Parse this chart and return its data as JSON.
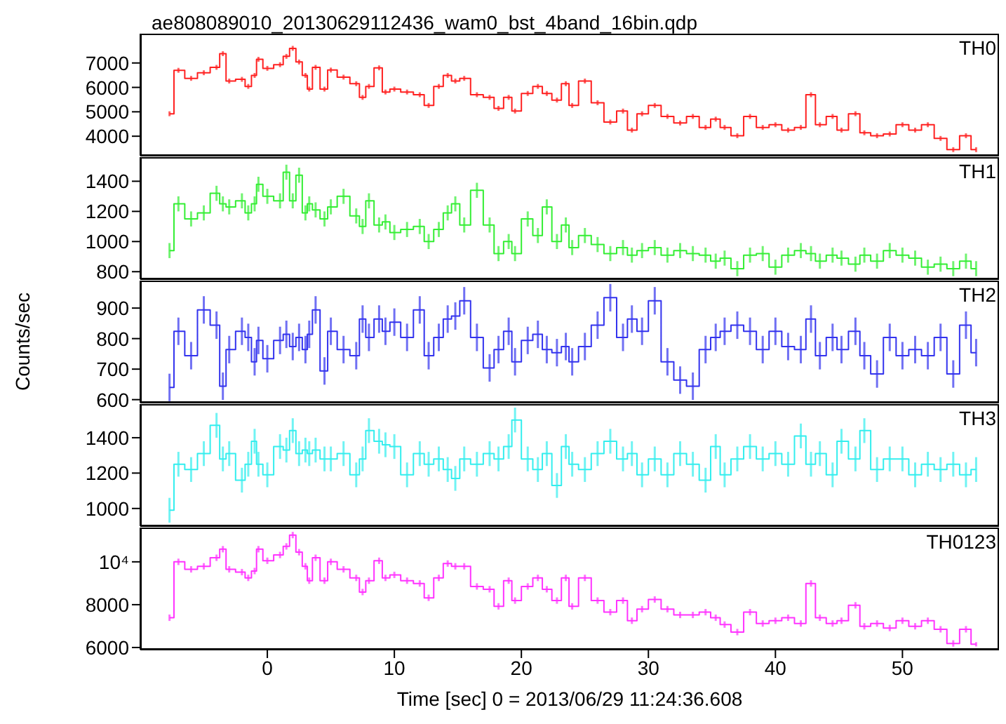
{
  "chart_data": [
    {
      "type": "step",
      "title": "ae808089010_20130629112436_wam0_bst_4band_16bin.qdp",
      "annotations": [
        "TH0"
      ],
      "tick_labels": "y",
      "xlim": [
        -10,
        57.6
      ],
      "xticks": [
        0,
        10,
        20,
        30,
        40,
        50
      ],
      "ylim": [
        3200,
        8200
      ],
      "yticks": [
        4000,
        5000,
        6000,
        7000
      ],
      "x": [
        -7.7,
        -7,
        -6,
        -5,
        -4,
        -3.5,
        -3,
        -2,
        -1.5,
        -1,
        -0.7,
        0,
        1,
        1.5,
        2,
        2.5,
        3,
        3.3,
        3.8,
        4.5,
        5,
        6,
        7,
        7.5,
        8,
        8.8,
        9.3,
        10,
        11,
        12,
        12.7,
        13.5,
        14.2,
        14.8,
        15.5,
        16.5,
        17.5,
        18.2,
        19,
        19.5,
        20.5,
        21.3,
        22,
        22.8,
        23.5,
        24,
        25,
        26,
        27,
        28,
        28.7,
        29.5,
        30.5,
        31.5,
        32.5,
        33.5,
        34.5,
        35.3,
        36,
        37,
        38,
        39,
        40,
        41,
        42,
        42.8,
        43.5,
        44.5,
        45.2,
        46.3,
        47,
        48,
        49,
        50,
        51,
        52,
        53,
        54,
        55,
        55.8
      ],
      "series": [
        {
          "color": "#ff2020",
          "values": [
            4920,
            6700,
            6370,
            6600,
            6820,
            7380,
            6260,
            6330,
            6040,
            6490,
            7150,
            6780,
            6930,
            7270,
            7600,
            7040,
            6490,
            5930,
            6820,
            5930,
            6710,
            6420,
            6150,
            5590,
            6040,
            6800,
            5810,
            5930,
            5810,
            5700,
            5260,
            6040,
            6490,
            6260,
            6370,
            5700,
            5590,
            5140,
            5590,
            5030,
            5750,
            6040,
            5750,
            5480,
            6150,
            5260,
            6260,
            5370,
            4580,
            5030,
            4250,
            4920,
            5260,
            4810,
            4540,
            4810,
            4360,
            4700,
            4360,
            4020,
            4810,
            4360,
            4470,
            4250,
            4360,
            5700,
            4470,
            4810,
            4250,
            4920,
            4140,
            4020,
            4090,
            4470,
            4250,
            4470,
            3910,
            3450,
            4020,
            3450
          ],
          "errors": [
            100,
            100,
            100,
            100,
            100,
            100,
            100,
            100,
            100,
            100,
            100,
            100,
            100,
            100,
            100,
            100,
            100,
            100,
            100,
            100,
            100,
            100,
            100,
            100,
            100,
            100,
            100,
            100,
            100,
            100,
            100,
            100,
            100,
            100,
            100,
            100,
            100,
            100,
            100,
            100,
            100,
            100,
            100,
            100,
            100,
            100,
            100,
            100,
            100,
            100,
            100,
            100,
            100,
            100,
            100,
            100,
            100,
            100,
            100,
            100,
            100,
            100,
            100,
            100,
            100,
            100,
            100,
            100,
            100,
            100,
            100,
            100,
            100,
            100,
            100,
            100,
            100,
            100,
            100,
            100
          ]
        }
      ]
    },
    {
      "type": "step",
      "annotations": [
        "TH1"
      ],
      "tick_labels": "y",
      "xlim": [
        -10,
        57.6
      ],
      "xticks": [
        0,
        10,
        20,
        30,
        40,
        50
      ],
      "ylim": [
        750,
        1560
      ],
      "yticks": [
        800,
        1000,
        1200,
        1400
      ],
      "x": [
        -7.7,
        -7,
        -6,
        -5,
        -4,
        -3.5,
        -3,
        -2,
        -1.5,
        -1,
        -0.7,
        0,
        1,
        1.5,
        2,
        2.5,
        3,
        3.3,
        3.8,
        4.5,
        5,
        6,
        7,
        7.5,
        8,
        8.8,
        9.3,
        10,
        11,
        12,
        12.7,
        13.5,
        14.2,
        14.8,
        15.5,
        16.5,
        17.5,
        18.2,
        19,
        19.5,
        20.5,
        21.3,
        22,
        22.8,
        23.5,
        24,
        25,
        26,
        27,
        28,
        28.7,
        29.5,
        30.5,
        31.5,
        32.5,
        33.5,
        34.5,
        35.3,
        36,
        37,
        38,
        39,
        40,
        41,
        42,
        42.8,
        43.5,
        44.5,
        45.2,
        46.3,
        47,
        48,
        49,
        50,
        51,
        52,
        53,
        54,
        55,
        55.8
      ],
      "series": [
        {
          "color": "#33ee33",
          "values": [
            940,
            1250,
            1150,
            1190,
            1320,
            1250,
            1230,
            1270,
            1190,
            1250,
            1380,
            1300,
            1270,
            1460,
            1270,
            1440,
            1190,
            1250,
            1210,
            1150,
            1230,
            1300,
            1170,
            1100,
            1270,
            1110,
            1130,
            1060,
            1080,
            1100,
            1000,
            1080,
            1190,
            1250,
            1110,
            1340,
            1110,
            920,
            1000,
            920,
            1150,
            1040,
            1230,
            1000,
            1110,
            960,
            1040,
            980,
            920,
            960,
            910,
            940,
            960,
            910,
            940,
            920,
            910,
            870,
            890,
            820,
            910,
            920,
            830,
            910,
            940,
            920,
            870,
            910,
            890,
            850,
            910,
            870,
            940,
            910,
            890,
            830,
            850,
            820,
            870,
            820
          ],
          "errors": [
            50,
            50,
            50,
            50,
            50,
            50,
            50,
            50,
            50,
            50,
            50,
            50,
            50,
            50,
            50,
            50,
            50,
            50,
            50,
            50,
            50,
            50,
            50,
            50,
            50,
            50,
            50,
            50,
            50,
            50,
            50,
            50,
            50,
            50,
            50,
            50,
            50,
            50,
            50,
            50,
            50,
            50,
            50,
            50,
            50,
            50,
            50,
            50,
            50,
            50,
            50,
            50,
            50,
            50,
            50,
            50,
            50,
            50,
            50,
            50,
            50,
            50,
            50,
            50,
            50,
            50,
            50,
            50,
            50,
            50,
            50,
            50,
            50,
            50,
            50,
            50,
            50,
            50,
            50,
            50
          ]
        }
      ]
    },
    {
      "type": "step",
      "annotations": [
        "TH2"
      ],
      "ylabel": "Counts/sec",
      "tick_labels": "y",
      "xlim": [
        -10,
        57.6
      ],
      "xticks": [
        0,
        10,
        20,
        30,
        40,
        50
      ],
      "ylim": [
        590,
        990
      ],
      "yticks": [
        600,
        700,
        800,
        900
      ],
      "x": [
        -7.7,
        -7,
        -6,
        -5,
        -4,
        -3.5,
        -3,
        -2,
        -1.5,
        -1,
        -0.7,
        0,
        1,
        1.5,
        2,
        2.5,
        3,
        3.3,
        3.8,
        4.5,
        5,
        6,
        7,
        7.5,
        8,
        8.8,
        9.3,
        10,
        11,
        12,
        12.7,
        13.5,
        14.2,
        14.8,
        15.5,
        16.5,
        17.5,
        18.2,
        19,
        19.5,
        20.5,
        21.3,
        22,
        22.8,
        23.5,
        24,
        25,
        26,
        27,
        28,
        28.7,
        29.5,
        30.5,
        31.5,
        32.5,
        33.5,
        34.5,
        35.3,
        36,
        37,
        38,
        39,
        40,
        41,
        42,
        42.8,
        43.5,
        44.5,
        45.2,
        46.3,
        47,
        48,
        49,
        50,
        51,
        52,
        53,
        54,
        55,
        55.8
      ],
      "series": [
        {
          "color": "#3333ee",
          "values": [
            640,
            824,
            744,
            894,
            844,
            644,
            764,
            824,
            804,
            724,
            794,
            734,
            794,
            814,
            774,
            804,
            764,
            814,
            894,
            694,
            824,
            764,
            744,
            864,
            804,
            864,
            824,
            854,
            804,
            894,
            744,
            804,
            864,
            874,
            924,
            804,
            704,
            764,
            824,
            724,
            794,
            814,
            764,
            754,
            774,
            724,
            774,
            844,
            934,
            804,
            864,
            824,
            924,
            724,
            664,
            644,
            764,
            804,
            824,
            844,
            824,
            764,
            824,
            774,
            764,
            864,
            744,
            804,
            764,
            824,
            744,
            684,
            804,
            744,
            764,
            744,
            804,
            684,
            844,
            754
          ],
          "errors": [
            45,
            45,
            45,
            45,
            45,
            45,
            45,
            45,
            45,
            45,
            45,
            45,
            45,
            45,
            45,
            45,
            45,
            45,
            45,
            45,
            45,
            45,
            45,
            45,
            45,
            45,
            45,
            45,
            45,
            45,
            45,
            45,
            45,
            45,
            45,
            45,
            45,
            45,
            45,
            45,
            45,
            45,
            45,
            45,
            45,
            45,
            45,
            45,
            45,
            45,
            45,
            45,
            45,
            45,
            45,
            45,
            45,
            45,
            45,
            45,
            45,
            45,
            45,
            45,
            45,
            45,
            45,
            45,
            45,
            45,
            45,
            45,
            45,
            45,
            45,
            45,
            45,
            45,
            45,
            45
          ]
        }
      ]
    },
    {
      "type": "step",
      "annotations": [
        "TH3"
      ],
      "tick_labels": "y",
      "xlim": [
        -10,
        57.6
      ],
      "xticks": [
        0,
        10,
        20,
        30,
        40,
        50
      ],
      "ylim": [
        900,
        1590
      ],
      "yticks": [
        1000,
        1200,
        1400
      ],
      "x": [
        -7.7,
        -7,
        -6,
        -5,
        -4,
        -3.5,
        -3,
        -2,
        -1.5,
        -1,
        -0.7,
        0,
        1,
        1.5,
        2,
        2.5,
        3,
        3.3,
        3.8,
        4.5,
        5,
        6,
        7,
        7.5,
        8,
        8.8,
        9.3,
        10,
        11,
        12,
        12.7,
        13.5,
        14.2,
        14.8,
        15.5,
        16.5,
        17.5,
        18.2,
        19,
        19.5,
        20.5,
        21.3,
        22,
        22.8,
        23.5,
        24,
        25,
        26,
        27,
        28,
        28.7,
        29.5,
        30.5,
        31.5,
        32.5,
        33.5,
        34.5,
        35.3,
        36,
        37,
        38,
        39,
        40,
        41,
        42,
        42.8,
        43.5,
        44.5,
        45.2,
        46.3,
        47,
        48,
        49,
        50,
        51,
        52,
        53,
        54,
        55,
        55.8
      ],
      "series": [
        {
          "color": "#33eeee",
          "values": [
            990,
            1250,
            1220,
            1310,
            1470,
            1280,
            1310,
            1160,
            1250,
            1380,
            1250,
            1190,
            1350,
            1330,
            1440,
            1310,
            1330,
            1310,
            1330,
            1280,
            1280,
            1310,
            1190,
            1280,
            1440,
            1380,
            1360,
            1350,
            1190,
            1310,
            1250,
            1280,
            1220,
            1170,
            1280,
            1250,
            1310,
            1280,
            1350,
            1500,
            1280,
            1220,
            1310,
            1130,
            1350,
            1250,
            1220,
            1310,
            1380,
            1280,
            1310,
            1190,
            1280,
            1190,
            1310,
            1250,
            1160,
            1350,
            1190,
            1280,
            1350,
            1280,
            1310,
            1250,
            1410,
            1250,
            1310,
            1190,
            1380,
            1280,
            1440,
            1220,
            1280,
            1280,
            1190,
            1250,
            1220,
            1250,
            1190,
            1220
          ],
          "errors": [
            70,
            70,
            70,
            70,
            70,
            70,
            70,
            70,
            70,
            70,
            70,
            70,
            70,
            70,
            70,
            70,
            70,
            70,
            70,
            70,
            70,
            70,
            70,
            70,
            70,
            70,
            70,
            70,
            70,
            70,
            70,
            70,
            70,
            70,
            70,
            70,
            70,
            70,
            70,
            70,
            70,
            70,
            70,
            70,
            70,
            70,
            70,
            70,
            70,
            70,
            70,
            70,
            70,
            70,
            70,
            70,
            70,
            70,
            70,
            70,
            70,
            70,
            70,
            70,
            70,
            70,
            70,
            70,
            70,
            70,
            70,
            70,
            70,
            70,
            70,
            70,
            70,
            70,
            70,
            70
          ]
        }
      ]
    },
    {
      "type": "step",
      "annotations": [
        "TH0123"
      ],
      "xlabel": "Time [sec] 0 = 2013/06/29 11:24:36.608",
      "xlim": [
        -10,
        57.6
      ],
      "xticks": [
        0,
        10,
        20,
        30,
        40,
        50
      ],
      "ylim": [
        5900,
        11600
      ],
      "yticks": [
        6000,
        8000,
        {
          "value": 10000,
          "label": "10⁴"
        }
      ],
      "x": [
        -7.7,
        -7,
        -6,
        -5,
        -4,
        -3.5,
        -3,
        -2,
        -1.5,
        -1,
        -0.7,
        0,
        1,
        1.5,
        2,
        2.5,
        3,
        3.3,
        3.8,
        4.5,
        5,
        6,
        7,
        7.5,
        8,
        8.8,
        9.3,
        10,
        11,
        12,
        12.7,
        13.5,
        14.2,
        14.8,
        15.5,
        16.5,
        17.5,
        18.2,
        19,
        19.5,
        20.5,
        21.3,
        22,
        22.8,
        23.5,
        24,
        25,
        26,
        27,
        28,
        28.7,
        29.5,
        30.5,
        31.5,
        32.5,
        33.5,
        34.5,
        35.3,
        36,
        37,
        38,
        39,
        40,
        41,
        42,
        42.8,
        43.5,
        44.5,
        45.2,
        46.3,
        47,
        48,
        49,
        50,
        51,
        52,
        53,
        54,
        55,
        55.8
      ],
      "series": [
        {
          "color": "#ff33ff",
          "values": [
            7390,
            10000,
            9650,
            9790,
            10190,
            10590,
            9650,
            9520,
            9250,
            9570,
            10590,
            10050,
            10320,
            10720,
            11250,
            10450,
            9790,
            9120,
            10190,
            9120,
            10000,
            9650,
            9250,
            8590,
            9120,
            10050,
            9250,
            9390,
            9120,
            8990,
            8320,
            9250,
            9920,
            9790,
            9790,
            8850,
            8720,
            7920,
            9120,
            8190,
            8850,
            9250,
            8720,
            8190,
            9250,
            7920,
            9250,
            8190,
            7650,
            8190,
            7250,
            7790,
            8240,
            7790,
            7520,
            7520,
            7650,
            7390,
            7070,
            6720,
            7650,
            7120,
            7250,
            7390,
            7120,
            8990,
            7390,
            7120,
            7250,
            7970,
            6990,
            7120,
            6910,
            7250,
            6990,
            7250,
            6850,
            6190,
            6850,
            6150
          ],
          "errors": [
            150,
            150,
            150,
            150,
            150,
            150,
            150,
            150,
            150,
            150,
            150,
            150,
            150,
            150,
            150,
            150,
            150,
            150,
            150,
            150,
            150,
            150,
            150,
            150,
            150,
            150,
            150,
            150,
            150,
            150,
            150,
            150,
            150,
            150,
            150,
            150,
            150,
            150,
            150,
            150,
            150,
            150,
            150,
            150,
            150,
            150,
            150,
            150,
            150,
            150,
            150,
            150,
            150,
            150,
            150,
            150,
            150,
            150,
            150,
            150,
            150,
            150,
            150,
            150,
            150,
            150,
            150,
            150,
            150,
            150,
            150,
            150,
            150,
            150,
            150,
            150,
            150,
            150,
            150,
            100
          ]
        }
      ]
    }
  ]
}
